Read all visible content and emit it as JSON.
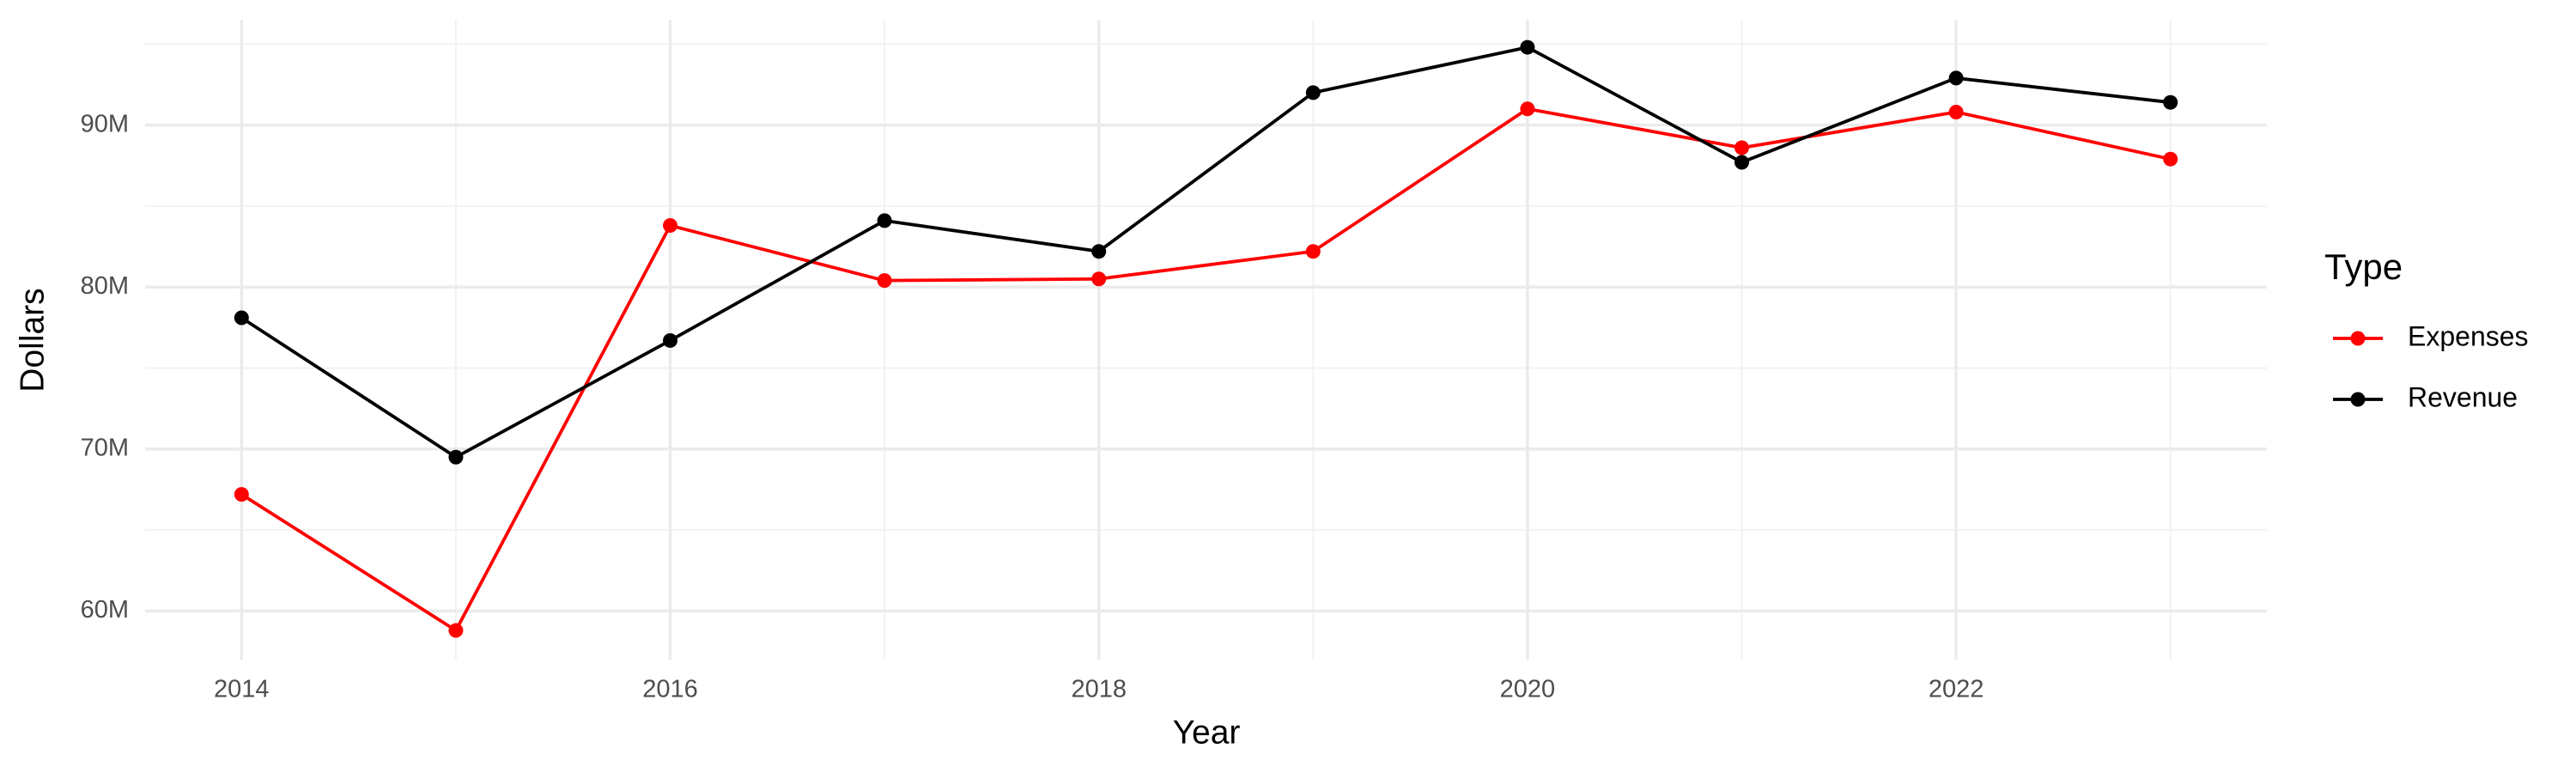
{
  "chart_data": {
    "type": "line",
    "x_label": "Year",
    "y_label": "Dollars",
    "x": [
      2014,
      2015,
      2016,
      2017,
      2018,
      2019,
      2020,
      2021,
      2022,
      2023
    ],
    "series": [
      {
        "name": "Expenses",
        "color": "#ff0000",
        "values": [
          67200000,
          58800000,
          83800000,
          80400000,
          80500000,
          82200000,
          91000000,
          88600000,
          90800000,
          87900000
        ]
      },
      {
        "name": "Revenue",
        "color": "#000000",
        "values": [
          78100000,
          69500000,
          76700000,
          84100000,
          82200000,
          92000000,
          94800000,
          87700000,
          92900000,
          91400000
        ]
      }
    ],
    "xlim": [
      2013.55,
      2023.45
    ],
    "ylim": [
      57000000,
      96500000
    ],
    "xticks": [
      2014,
      2016,
      2018,
      2020,
      2022
    ],
    "yticks": [
      {
        "value": 60000000,
        "label": "60M"
      },
      {
        "value": 70000000,
        "label": "70M"
      },
      {
        "value": 80000000,
        "label": "80M"
      },
      {
        "value": 90000000,
        "label": "90M"
      }
    ],
    "x_minor_grid": [
      2015,
      2017,
      2019,
      2021,
      2023
    ],
    "y_minor_grid": [
      65000000,
      75000000,
      85000000,
      95000000
    ],
    "grid": true,
    "legend_title": "Type",
    "legend_position": "right"
  }
}
